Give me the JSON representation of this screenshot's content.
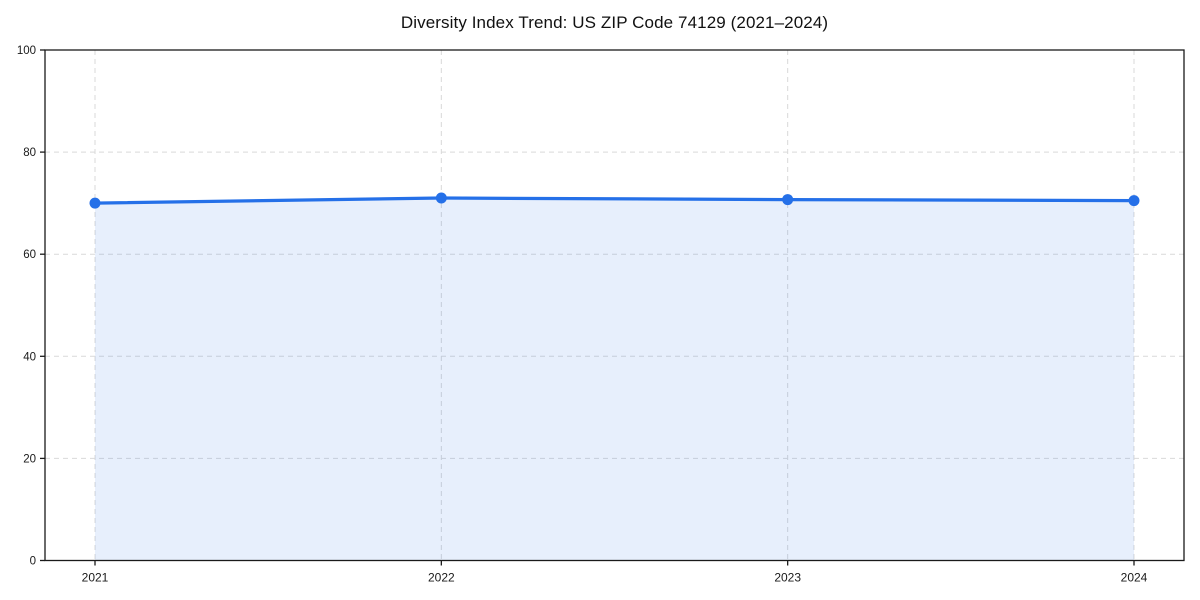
{
  "chart_data": {
    "type": "area",
    "title": "Diversity Index Trend: US ZIP Code 74129 (2021–2024)",
    "x": [
      "2021",
      "2022",
      "2023",
      "2024"
    ],
    "series": [
      {
        "name": "Diversity Index",
        "values": [
          70.0,
          71.0,
          70.7,
          70.5
        ]
      }
    ],
    "xlabel": "",
    "ylabel": "",
    "ylim": [
      0,
      100
    ],
    "yticks": [
      0,
      20,
      40,
      60,
      80,
      100
    ],
    "grid": "dashed-both-axes",
    "legend": "none",
    "markers": "circle",
    "colors": {
      "line": "#2570e8",
      "marker": "#2570e8",
      "fill": "#2570e8",
      "fill_opacity": 0.11,
      "grid": "#d9d9d9",
      "axis": "#1a1a1a",
      "text": "#1a1a1a",
      "background": "#ffffff"
    }
  }
}
